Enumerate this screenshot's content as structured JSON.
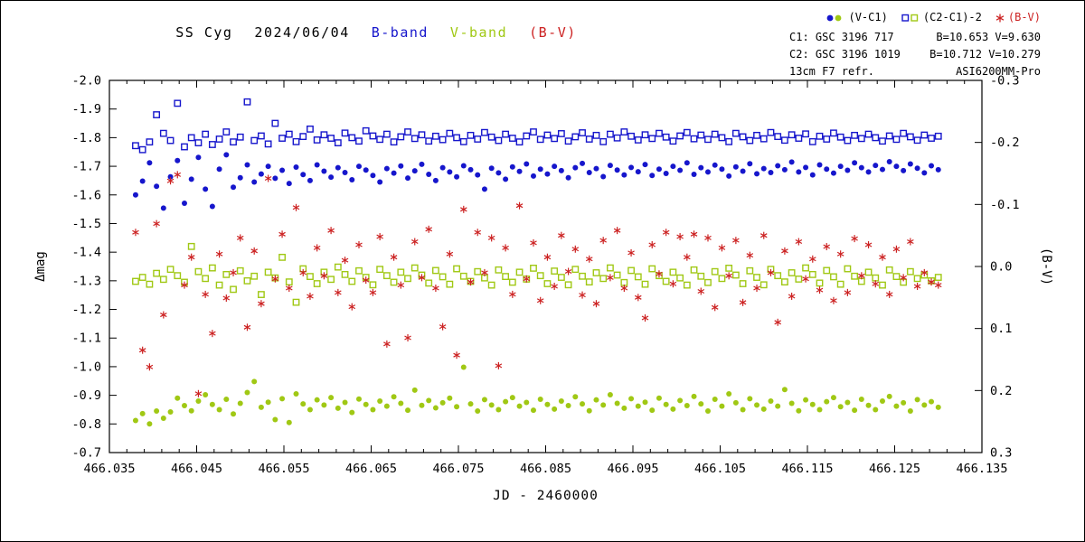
{
  "title": {
    "star": "SS Cyg",
    "date": "2024/06/04",
    "b_label": "B-band",
    "v_label": "V-band",
    "bv_label": "(B-V)"
  },
  "legend": {
    "vc1_label": "(V-C1)",
    "check_label": "(C2-C1)-2",
    "bv_label": "(B-V)"
  },
  "info": {
    "c1_name": "C1: GSC 3196 717",
    "c1_mags": "B=10.653 V=9.630",
    "c2_name": "C2: GSC 3196 1019",
    "c2_mags": "B=10.712 V=10.279",
    "scope": "13cm F7 refr.",
    "camera": "ASI6200MM-Pro"
  },
  "colors": {
    "b": "#1616cc",
    "v": "#a0c814",
    "bv": "#cc2222",
    "axis": "#000000"
  },
  "chart_data": {
    "type": "scatter",
    "xlabel": "JD - 2460000",
    "ylabel_left": "Δmag",
    "ylabel_right": "(B-V)",
    "xlim": [
      466.035,
      466.135
    ],
    "ylim_left": [
      -2.0,
      -0.7
    ],
    "ylim_right": [
      -0.3,
      0.3
    ],
    "x_ticks": [
      466.035,
      466.045,
      466.055,
      466.065,
      466.075,
      466.085,
      466.095,
      466.105,
      466.115,
      466.125,
      466.135
    ],
    "y_ticks_left": [
      -2.0,
      -1.9,
      -1.8,
      -1.7,
      -1.6,
      -1.5,
      -1.4,
      -1.3,
      -1.2,
      -1.1,
      -1.0,
      -0.9,
      -0.8,
      -0.7
    ],
    "y_ticks_right": [
      -0.3,
      -0.2,
      -0.1,
      0.0,
      0.1,
      0.2,
      0.3
    ],
    "x": [
      466.038,
      466.0388,
      466.0396,
      466.0404,
      466.0412,
      466.042,
      466.0428,
      466.0436,
      466.0444,
      466.0452,
      466.046,
      466.0468,
      466.0476,
      466.0484,
      466.0492,
      466.05,
      466.0508,
      466.0516,
      466.0524,
      466.0532,
      466.054,
      466.0548,
      466.0556,
      466.0564,
      466.0572,
      466.058,
      466.0588,
      466.0596,
      466.0604,
      466.0612,
      466.062,
      466.0628,
      466.0636,
      466.0644,
      466.0652,
      466.066,
      466.0668,
      466.0676,
      466.0684,
      466.0692,
      466.07,
      466.0708,
      466.0716,
      466.0724,
      466.0732,
      466.074,
      466.0748,
      466.0756,
      466.0764,
      466.0772,
      466.078,
      466.0788,
      466.0796,
      466.0804,
      466.0812,
      466.082,
      466.0828,
      466.0836,
      466.0844,
      466.0852,
      466.086,
      466.0868,
      466.0876,
      466.0884,
      466.0892,
      466.09,
      466.0908,
      466.0916,
      466.0924,
      466.0932,
      466.094,
      466.0948,
      466.0956,
      466.0964,
      466.0972,
      466.098,
      466.0988,
      466.0996,
      466.1004,
      466.1012,
      466.102,
      466.1028,
      466.1036,
      466.1044,
      466.1052,
      466.106,
      466.1068,
      466.1076,
      466.1084,
      466.1092,
      466.11,
      466.1108,
      466.1116,
      466.1124,
      466.1132,
      466.114,
      466.1148,
      466.1156,
      466.1164,
      466.1172,
      466.118,
      466.1188,
      466.1196,
      466.1204,
      466.1212,
      466.122,
      466.1228,
      466.1236,
      466.1244,
      466.1252,
      466.126,
      466.1268,
      466.1276,
      466.1284,
      466.1292,
      466.13
    ],
    "series": [
      {
        "id": "b-check",
        "name": "B (C2-C1)-2",
        "marker": "square",
        "color": "b",
        "axis": "left",
        "values": [
          -1.772,
          -1.758,
          -1.785,
          -1.88,
          -1.815,
          -1.79,
          -1.92,
          -1.768,
          -1.8,
          -1.782,
          -1.812,
          -1.776,
          -1.795,
          -1.82,
          -1.785,
          -1.802,
          -1.925,
          -1.79,
          -1.806,
          -1.778,
          -1.85,
          -1.798,
          -1.812,
          -1.786,
          -1.804,
          -1.83,
          -1.792,
          -1.81,
          -1.798,
          -1.782,
          -1.816,
          -1.8,
          -1.788,
          -1.824,
          -1.806,
          -1.794,
          -1.812,
          -1.785,
          -1.803,
          -1.82,
          -1.797,
          -1.81,
          -1.788,
          -1.805,
          -1.793,
          -1.815,
          -1.8,
          -1.786,
          -1.808,
          -1.795,
          -1.818,
          -1.802,
          -1.79,
          -1.812,
          -1.798,
          -1.785,
          -1.806,
          -1.82,
          -1.794,
          -1.809,
          -1.797,
          -1.814,
          -1.788,
          -1.803,
          -1.817,
          -1.795,
          -1.808,
          -1.786,
          -1.812,
          -1.799,
          -1.82,
          -1.805,
          -1.792,
          -1.81,
          -1.797,
          -1.815,
          -1.802,
          -1.788,
          -1.806,
          -1.818,
          -1.796,
          -1.809,
          -1.794,
          -1.812,
          -1.8,
          -1.786,
          -1.815,
          -1.803,
          -1.79,
          -1.808,
          -1.796,
          -1.818,
          -1.804,
          -1.791,
          -1.81,
          -1.798,
          -1.813,
          -1.786,
          -1.805,
          -1.795,
          -1.816,
          -1.802,
          -1.79,
          -1.808,
          -1.797,
          -1.812,
          -1.8,
          -1.788,
          -1.806,
          -1.794,
          -1.815,
          -1.803,
          -1.791,
          -1.809,
          -1.798,
          -1.805
        ]
      },
      {
        "id": "v-check",
        "name": "V (C2-C1)-2",
        "marker": "square",
        "color": "v",
        "axis": "left",
        "values": [
          -1.298,
          -1.312,
          -1.288,
          -1.326,
          -1.305,
          -1.34,
          -1.318,
          -1.295,
          -1.42,
          -1.332,
          -1.308,
          -1.345,
          -1.285,
          -1.322,
          -1.27,
          -1.335,
          -1.3,
          -1.316,
          -1.252,
          -1.33,
          -1.31,
          -1.382,
          -1.296,
          -1.225,
          -1.342,
          -1.315,
          -1.29,
          -1.33,
          -1.305,
          -1.348,
          -1.322,
          -1.298,
          -1.335,
          -1.312,
          -1.286,
          -1.34,
          -1.318,
          -1.295,
          -1.33,
          -1.308,
          -1.345,
          -1.32,
          -1.292,
          -1.336,
          -1.314,
          -1.288,
          -1.342,
          -1.316,
          -1.298,
          -1.332,
          -1.31,
          -1.285,
          -1.338,
          -1.315,
          -1.295,
          -1.33,
          -1.306,
          -1.344,
          -1.318,
          -1.29,
          -1.334,
          -1.312,
          -1.286,
          -1.34,
          -1.316,
          -1.296,
          -1.328,
          -1.308,
          -1.345,
          -1.32,
          -1.294,
          -1.336,
          -1.314,
          -1.288,
          -1.342,
          -1.318,
          -1.298,
          -1.33,
          -1.31,
          -1.285,
          -1.338,
          -1.316,
          -1.294,
          -1.332,
          -1.308,
          -1.344,
          -1.32,
          -1.29,
          -1.335,
          -1.312,
          -1.286,
          -1.34,
          -1.318,
          -1.296,
          -1.328,
          -1.306,
          -1.345,
          -1.322,
          -1.292,
          -1.336,
          -1.314,
          -1.288,
          -1.342,
          -1.316,
          -1.298,
          -1.33,
          -1.31,
          -1.285,
          -1.338,
          -1.315,
          -1.295,
          -1.332,
          -1.308,
          -1.32,
          -1.3,
          -1.312
        ]
      },
      {
        "id": "b-vc1",
        "name": "B (V-C1)",
        "marker": "circle",
        "color": "b",
        "axis": "left",
        "values": [
          -1.6,
          -1.648,
          -1.712,
          -1.63,
          -1.554,
          -1.663,
          -1.72,
          -1.571,
          -1.655,
          -1.731,
          -1.62,
          -1.56,
          -1.69,
          -1.74,
          -1.627,
          -1.66,
          -1.705,
          -1.645,
          -1.673,
          -1.7,
          -1.658,
          -1.686,
          -1.64,
          -1.697,
          -1.671,
          -1.65,
          -1.705,
          -1.683,
          -1.662,
          -1.695,
          -1.678,
          -1.653,
          -1.7,
          -1.687,
          -1.668,
          -1.645,
          -1.692,
          -1.676,
          -1.701,
          -1.659,
          -1.684,
          -1.707,
          -1.672,
          -1.65,
          -1.695,
          -1.68,
          -1.663,
          -1.702,
          -1.688,
          -1.67,
          -1.62,
          -1.693,
          -1.677,
          -1.655,
          -1.698,
          -1.682,
          -1.708,
          -1.666,
          -1.69,
          -1.673,
          -1.7,
          -1.685,
          -1.66,
          -1.695,
          -1.71,
          -1.678,
          -1.692,
          -1.664,
          -1.703,
          -1.687,
          -1.67,
          -1.696,
          -1.681,
          -1.706,
          -1.668,
          -1.69,
          -1.675,
          -1.7,
          -1.686,
          -1.712,
          -1.672,
          -1.695,
          -1.68,
          -1.704,
          -1.69,
          -1.666,
          -1.698,
          -1.683,
          -1.709,
          -1.674,
          -1.692,
          -1.678,
          -1.702,
          -1.688,
          -1.715,
          -1.68,
          -1.696,
          -1.67,
          -1.705,
          -1.69,
          -1.676,
          -1.7,
          -1.686,
          -1.712,
          -1.695,
          -1.68,
          -1.703,
          -1.689,
          -1.716,
          -1.7,
          -1.685,
          -1.708,
          -1.693,
          -1.677,
          -1.702,
          -1.688
        ]
      },
      {
        "id": "v-vc1",
        "name": "V (V-C1)",
        "marker": "circle",
        "color": "v",
        "axis": "left",
        "values": [
          -0.812,
          -0.836,
          -0.8,
          -0.845,
          -0.82,
          -0.842,
          -0.89,
          -0.864,
          -0.846,
          -0.88,
          -0.902,
          -0.868,
          -0.85,
          -0.886,
          -0.835,
          -0.872,
          -0.91,
          -0.948,
          -0.858,
          -0.876,
          -0.815,
          -0.888,
          -0.805,
          -0.905,
          -0.87,
          -0.85,
          -0.884,
          -0.866,
          -0.892,
          -0.855,
          -0.875,
          -0.84,
          -0.887,
          -0.868,
          -0.85,
          -0.88,
          -0.862,
          -0.895,
          -0.872,
          -0.848,
          -0.918,
          -0.865,
          -0.882,
          -0.856,
          -0.874,
          -0.89,
          -0.86,
          -0.998,
          -0.87,
          -0.845,
          -0.885,
          -0.866,
          -0.85,
          -0.878,
          -0.892,
          -0.862,
          -0.875,
          -0.848,
          -0.886,
          -0.868,
          -0.852,
          -0.88,
          -0.864,
          -0.895,
          -0.87,
          -0.846,
          -0.884,
          -0.866,
          -0.902,
          -0.872,
          -0.855,
          -0.888,
          -0.862,
          -0.876,
          -0.848,
          -0.89,
          -0.868,
          -0.852,
          -0.882,
          -0.864,
          -0.896,
          -0.87,
          -0.845,
          -0.886,
          -0.862,
          -0.905,
          -0.874,
          -0.85,
          -0.888,
          -0.866,
          -0.852,
          -0.88,
          -0.862,
          -0.92,
          -0.872,
          -0.846,
          -0.884,
          -0.868,
          -0.85,
          -0.878,
          -0.892,
          -0.86,
          -0.875,
          -0.848,
          -0.886,
          -0.865,
          -0.85,
          -0.88,
          -0.896,
          -0.862,
          -0.874,
          -0.845,
          -0.885,
          -0.866,
          -0.878,
          -0.858
        ]
      },
      {
        "id": "bv",
        "name": "(B-V)",
        "marker": "asterisk",
        "color": "bv",
        "axis": "right",
        "values": [
          -0.055,
          0.135,
          0.162,
          -0.069,
          0.078,
          -0.138,
          -0.148,
          0.03,
          -0.015,
          0.205,
          0.045,
          0.108,
          -0.02,
          0.051,
          0.01,
          -0.046,
          0.098,
          -0.025,
          0.06,
          -0.142,
          0.02,
          -0.052,
          0.035,
          -0.095,
          0.01,
          0.048,
          -0.03,
          0.015,
          -0.058,
          0.042,
          -0.01,
          0.065,
          -0.035,
          0.022,
          0.042,
          -0.048,
          0.125,
          -0.015,
          0.03,
          0.115,
          -0.04,
          0.018,
          -0.06,
          0.035,
          0.097,
          -0.02,
          0.143,
          -0.092,
          0.025,
          -0.055,
          0.01,
          -0.046,
          0.16,
          -0.03,
          0.045,
          -0.098,
          0.02,
          -0.038,
          0.055,
          -0.015,
          0.032,
          -0.05,
          0.008,
          -0.028,
          0.046,
          -0.012,
          0.06,
          -0.042,
          0.018,
          -0.058,
          0.035,
          -0.022,
          0.05,
          0.083,
          -0.035,
          0.012,
          -0.055,
          0.028,
          -0.048,
          -0.015,
          -0.052,
          0.04,
          -0.046,
          0.066,
          -0.03,
          0.015,
          -0.042,
          0.058,
          -0.018,
          0.035,
          -0.05,
          0.01,
          0.09,
          -0.025,
          0.048,
          -0.04,
          0.02,
          -0.012,
          0.038,
          -0.032,
          0.055,
          -0.02,
          0.042,
          -0.045,
          0.015,
          -0.035,
          0.028,
          -0.015,
          0.045,
          -0.028,
          0.018,
          -0.04,
          0.032,
          0.01,
          0.025,
          0.03
        ]
      }
    ]
  }
}
